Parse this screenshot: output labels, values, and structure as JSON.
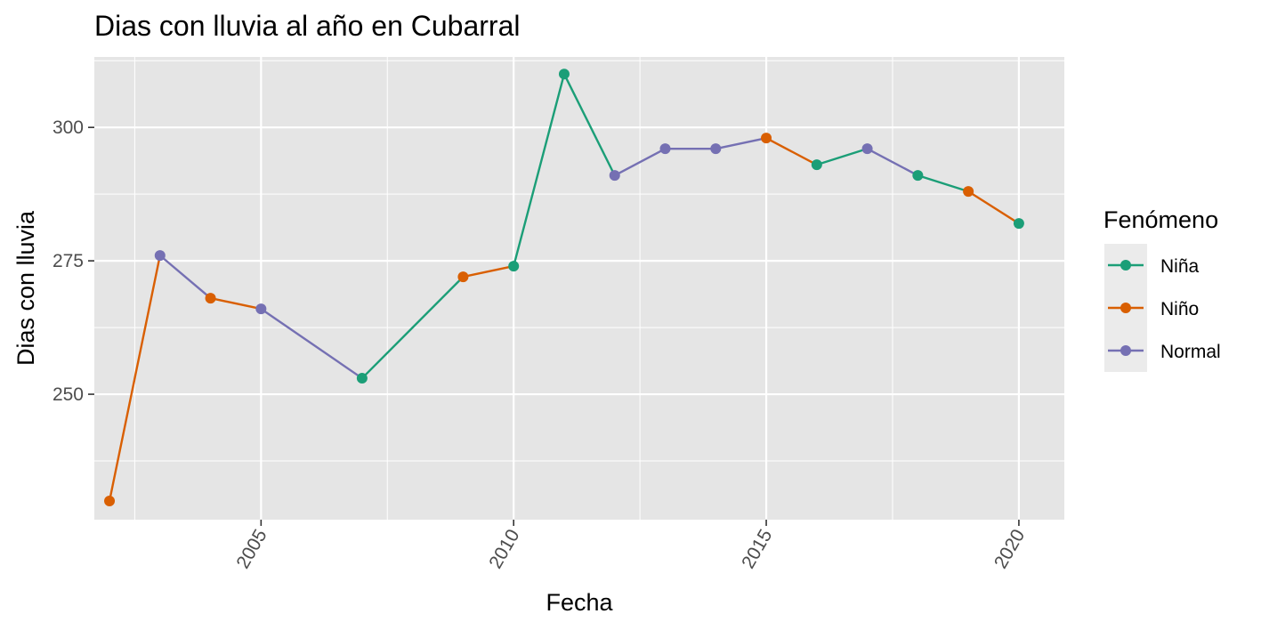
{
  "chart_data": {
    "type": "line",
    "title": "Dias con lluvia al año en Cubarral",
    "xlabel": "Fecha",
    "ylabel": "Dias con lluvia",
    "xlim": [
      2001.7,
      2020.9
    ],
    "ylim": [
      226.5,
      313.2
    ],
    "x_ticks": [
      2005,
      2010,
      2015,
      2020
    ],
    "x_tick_labels": [
      "2005",
      "2010",
      "2015",
      "2020"
    ],
    "x_tick_label_rotation": -60,
    "y_ticks": [
      250,
      275,
      300
    ],
    "y_tick_labels": [
      "250",
      "275",
      "300"
    ],
    "grid": true,
    "legend": {
      "title": "Fenómeno",
      "position": "right",
      "entries": [
        {
          "label": "Niña",
          "color": "#1b9e77"
        },
        {
          "label": "Niño",
          "color": "#d95f02"
        },
        {
          "label": "Normal",
          "color": "#7570b3"
        }
      ]
    },
    "colors": {
      "Niña": "#1b9e77",
      "Niño": "#d95f02",
      "Normal": "#7570b3",
      "panel_background": "#e5e5e5",
      "grid": "#ffffff"
    },
    "points": [
      {
        "x": 2002,
        "y": 230,
        "phenomenon": "Niño"
      },
      {
        "x": 2003,
        "y": 276,
        "phenomenon": "Normal"
      },
      {
        "x": 2004,
        "y": 268,
        "phenomenon": "Niño"
      },
      {
        "x": 2005,
        "y": 266,
        "phenomenon": "Normal"
      },
      {
        "x": 2007,
        "y": 253,
        "phenomenon": "Niña"
      },
      {
        "x": 2009,
        "y": 272,
        "phenomenon": "Niño"
      },
      {
        "x": 2010,
        "y": 274,
        "phenomenon": "Niña"
      },
      {
        "x": 2011,
        "y": 310,
        "phenomenon": "Niña"
      },
      {
        "x": 2012,
        "y": 291,
        "phenomenon": "Normal"
      },
      {
        "x": 2013,
        "y": 296,
        "phenomenon": "Normal"
      },
      {
        "x": 2014,
        "y": 296,
        "phenomenon": "Normal"
      },
      {
        "x": 2015,
        "y": 298,
        "phenomenon": "Niño"
      },
      {
        "x": 2016,
        "y": 293,
        "phenomenon": "Niña"
      },
      {
        "x": 2017,
        "y": 296,
        "phenomenon": "Normal"
      },
      {
        "x": 2018,
        "y": 291,
        "phenomenon": "Niña"
      },
      {
        "x": 2019,
        "y": 288,
        "phenomenon": "Niño"
      },
      {
        "x": 2020,
        "y": 282,
        "phenomenon": "Niña"
      }
    ]
  }
}
